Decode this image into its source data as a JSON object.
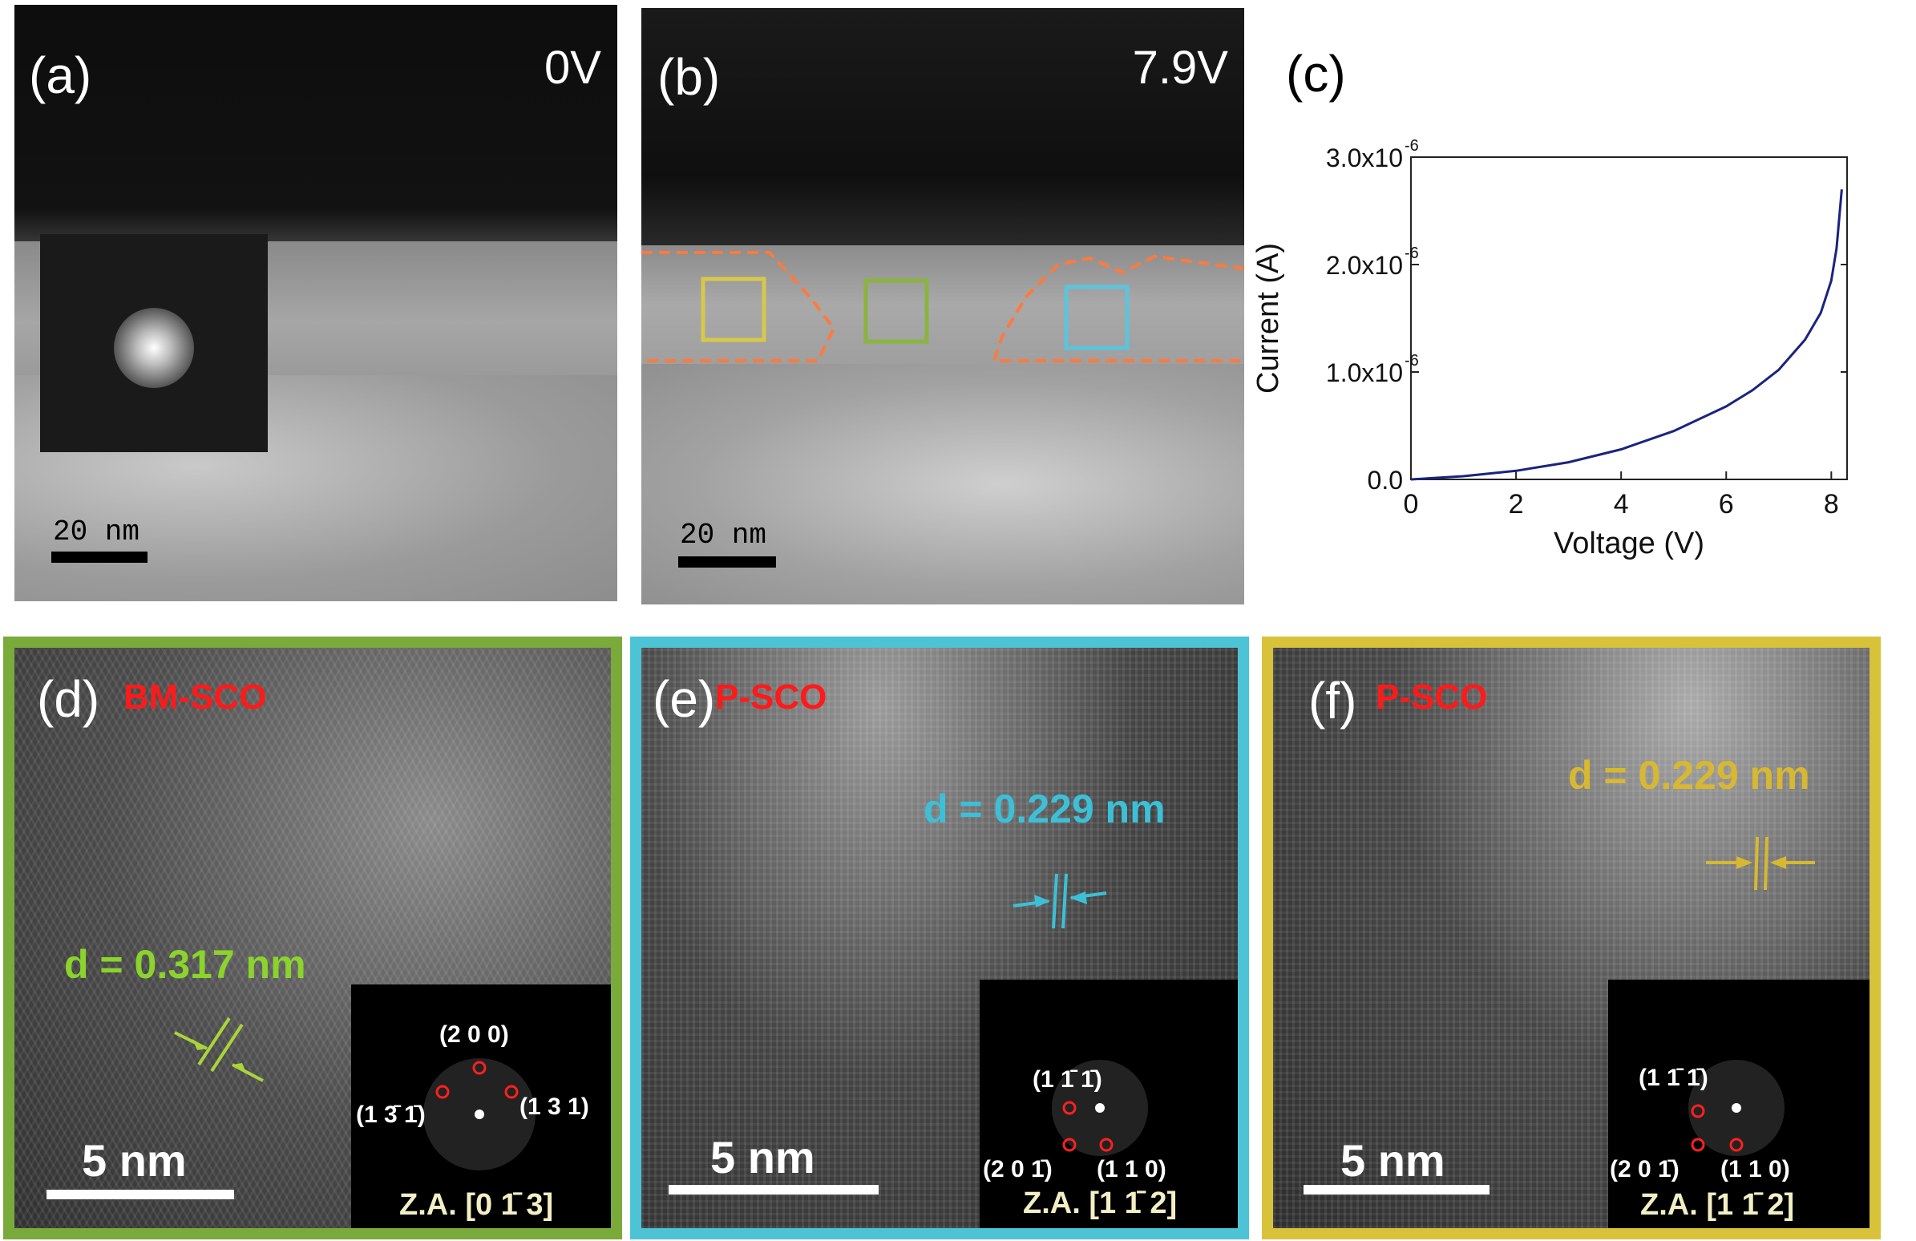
{
  "panels": {
    "a": {
      "label": "(a)",
      "voltage": "0V",
      "scalebar": "20 nm"
    },
    "b": {
      "label": "(b)",
      "voltage": "7.9V",
      "scalebar": "20 nm",
      "box_colors": [
        "#d8c84a",
        "#8ab43e",
        "#5cc4dc"
      ],
      "outline_color": "#ff7a3d"
    },
    "c": {
      "label": "(c)"
    },
    "d": {
      "label": "(d)",
      "phase": "BM-SCO",
      "spacing": "d = 0.317 nm",
      "scalebar": "5 nm",
      "spots": [
        "(2 0 0)",
        "(1 3̄ 1̄)",
        "(1 3 1)"
      ],
      "zone_axis": "Z.A. [0 1̄ 3]",
      "frame_color": "#7aab3a",
      "spacing_color": "#8ad42b"
    },
    "e": {
      "label": "(e)",
      "phase": "P-SCO",
      "spacing": "d = 0.229 nm",
      "scalebar": "5 nm",
      "spots": [
        "(1 1̄ 1̄)",
        "(2 0 1̄)",
        "(1 1 0)"
      ],
      "zone_axis": "Z.A. [1 1̄ 2]",
      "frame_color": "#4cc4d6",
      "spacing_color": "#3cc0d8"
    },
    "f": {
      "label": "(f)",
      "phase": "P-SCO",
      "spacing": "d = 0.229 nm",
      "scalebar": "5 nm",
      "spots": [
        "(1 1̄ 1̄)",
        "(2 0 1̄)",
        "(1 1 0)"
      ],
      "zone_axis": "Z.A. [1 1̄ 2]",
      "frame_color": "#d8c23a",
      "spacing_color": "#d8b830"
    }
  },
  "colors": {
    "phase_label": "#ff1a1a",
    "zone_axis": "#f3efc4"
  },
  "chart_data": {
    "type": "line",
    "xlabel": "Voltage (V)",
    "ylabel": "Current (A)",
    "xlim": [
      0,
      8.3
    ],
    "ylim": [
      0,
      3e-06
    ],
    "xticks": [
      0,
      2,
      4,
      6,
      8
    ],
    "yticks": [
      0,
      1e-06,
      2e-06,
      3e-06
    ],
    "ytick_labels": [
      "0.0",
      "1.0x10",
      "2.0x10",
      "3.0x10"
    ],
    "ytick_exponent": "-6",
    "series": [
      {
        "color": "#1a237e",
        "x": [
          0,
          1,
          2,
          3,
          4,
          5,
          6,
          6.5,
          7,
          7.5,
          7.8,
          8.0,
          8.1,
          8.2
        ],
        "y": [
          0,
          3e-08,
          8e-08,
          1.6e-07,
          2.8e-07,
          4.5e-07,
          6.8e-07,
          8.3e-07,
          1.02e-06,
          1.3e-06,
          1.55e-06,
          1.85e-06,
          2.15e-06,
          2.7e-06
        ]
      }
    ]
  }
}
